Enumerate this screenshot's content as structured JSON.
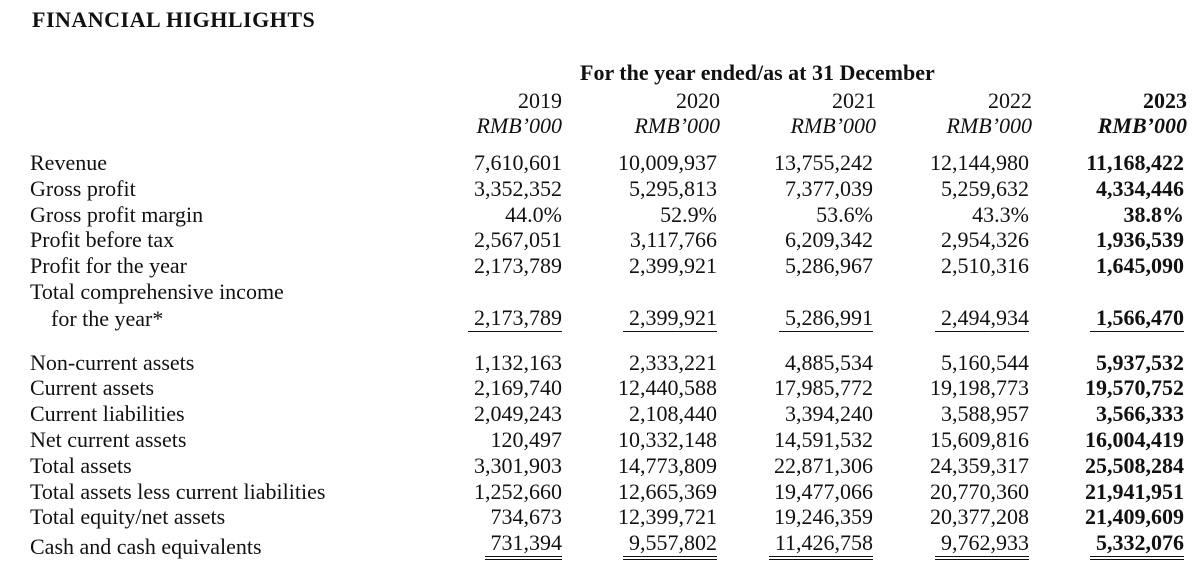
{
  "title": "FINANCIAL HIGHLIGHTS",
  "period_heading": "For the year ended/as at 31 December",
  "columns": [
    {
      "year": "2019",
      "currency": "RMB’000"
    },
    {
      "year": "2020",
      "currency": "RMB’000"
    },
    {
      "year": "2021",
      "currency": "RMB’000"
    },
    {
      "year": "2022",
      "currency": "RMB’000"
    },
    {
      "year": "2023",
      "currency": "RMB’000"
    }
  ],
  "income_rows": [
    {
      "label": "Revenue",
      "values": [
        "7,610,601",
        "10,009,937",
        "13,755,242",
        "12,144,980",
        "11,168,422"
      ]
    },
    {
      "label": "Gross profit",
      "values": [
        "3,352,352",
        "5,295,813",
        "7,377,039",
        "5,259,632",
        "4,334,446"
      ]
    },
    {
      "label": "Gross profit margin",
      "values": [
        "44.0%",
        "52.9%",
        "53.6%",
        "43.3%",
        "38.8%"
      ]
    },
    {
      "label": "Profit before tax",
      "values": [
        "2,567,051",
        "3,117,766",
        "6,209,342",
        "2,954,326",
        "1,936,539"
      ]
    },
    {
      "label": "Profit for the year",
      "values": [
        "2,173,789",
        "2,399,921",
        "5,286,967",
        "2,510,316",
        "1,645,090"
      ]
    }
  ],
  "comprehensive_row": {
    "label_line1": "Total comprehensive income",
    "label_line2": "for the year*",
    "values": [
      "2,173,789",
      "2,399,921",
      "5,286,991",
      "2,494,934",
      "1,566,470"
    ]
  },
  "balance_rows": [
    {
      "label": "Non-current assets",
      "values": [
        "1,132,163",
        "2,333,221",
        "4,885,534",
        "5,160,544",
        "5,937,532"
      ]
    },
    {
      "label": "Current assets",
      "values": [
        "2,169,740",
        "12,440,588",
        "17,985,772",
        "19,198,773",
        "19,570,752"
      ]
    },
    {
      "label": "Current liabilities",
      "values": [
        "2,049,243",
        "2,108,440",
        "3,394,240",
        "3,588,957",
        "3,566,333"
      ]
    },
    {
      "label": "Net current assets",
      "values": [
        "120,497",
        "10,332,148",
        "14,591,532",
        "15,609,816",
        "16,004,419"
      ]
    },
    {
      "label": "Total assets",
      "values": [
        "3,301,903",
        "14,773,809",
        "22,871,306",
        "24,359,317",
        "25,508,284"
      ]
    },
    {
      "label": "Total assets less current liabilities",
      "values": [
        "1,252,660",
        "12,665,369",
        "19,477,066",
        "20,770,360",
        "21,941,951"
      ]
    },
    {
      "label": "Total equity/net assets",
      "values": [
        "734,673",
        "12,399,721",
        "19,246,359",
        "20,377,208",
        "21,409,609"
      ]
    },
    {
      "label": "Cash and cash equivalents",
      "values": [
        "731,394",
        "9,557,802",
        "11,426,758",
        "9,762,933",
        "5,332,076"
      ]
    }
  ]
}
